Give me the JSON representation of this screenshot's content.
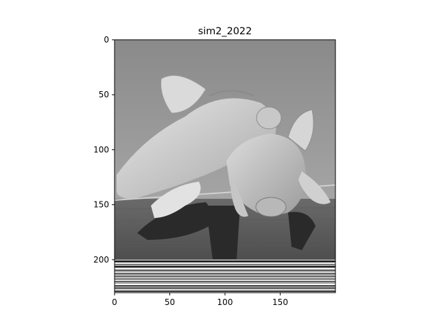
{
  "chart_data": {
    "type": "image",
    "title": "sim2_2022",
    "colormap": "gray",
    "image_description": "grayscale photo of two piglets resting their heads on a wooden board, with horizontal striped artifact rows at the bottom",
    "xlim": [
      0,
      200
    ],
    "ylim": [
      230,
      0
    ],
    "x_ticks": [
      0,
      50,
      100,
      150
    ],
    "x_tick_labels": [
      "0",
      "50",
      "100",
      "150"
    ],
    "y_ticks": [
      0,
      50,
      100,
      150,
      200
    ],
    "y_tick_labels": [
      "0",
      "50",
      "100",
      "150",
      "200"
    ],
    "stripe_region_start_row": 200,
    "xlabel": "",
    "ylabel": ""
  }
}
